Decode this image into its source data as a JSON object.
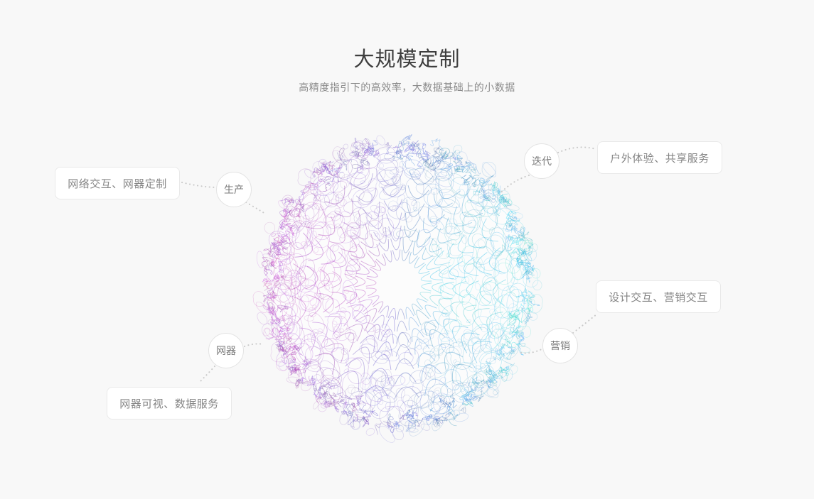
{
  "header": {
    "title": "大规模定制",
    "subtitle": "高精度指引下的高效率，大数据基础上的小数据"
  },
  "diagram": {
    "nodes": [
      {
        "id": "production",
        "label": "生产"
      },
      {
        "id": "iteration",
        "label": "迭代"
      },
      {
        "id": "device",
        "label": "网器"
      },
      {
        "id": "marketing",
        "label": "营销"
      }
    ],
    "cards": [
      {
        "id": "network-interaction",
        "label": "网络交互、网器定制"
      },
      {
        "id": "outdoor-experience",
        "label": "户外体验、共享服务"
      },
      {
        "id": "design-interaction",
        "label": "设计交互、营销交互"
      },
      {
        "id": "device-visual",
        "label": "网器可视、数据服务"
      }
    ],
    "colors": {
      "sphere_magenta": "#bb55c9",
      "sphere_indigo": "#6a6fc8",
      "sphere_cyan": "#46cde1",
      "connector": "#c9c9c9",
      "card_border": "#e9e9e9",
      "card_text": "#858585",
      "title_text": "#3e3e3e",
      "subtitle_text": "#8a8a8a",
      "background": "#f8f8f8"
    }
  }
}
